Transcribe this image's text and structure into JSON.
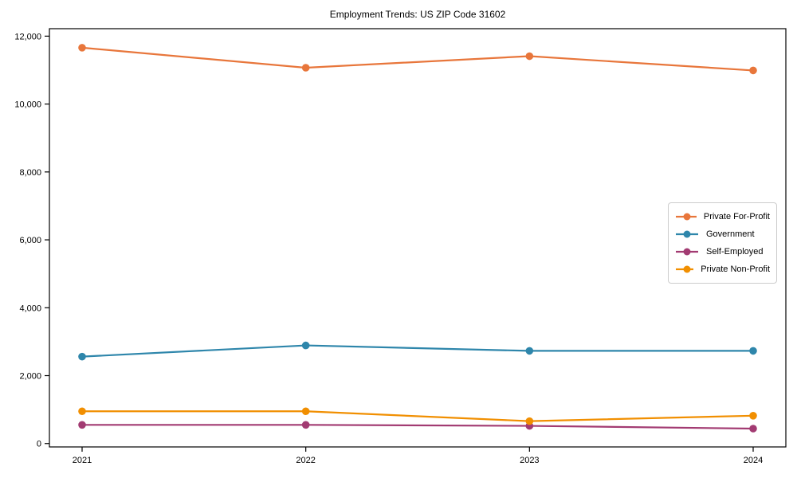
{
  "title": "Employment Trends: US ZIP Code 31602",
  "chart_data": {
    "type": "line",
    "title": "Employment Trends: US ZIP Code 31602",
    "x_labels": [
      "2021",
      "2022",
      "2023",
      "2024"
    ],
    "series": [
      {
        "name": "Private For-Profit",
        "color": "#E8763B",
        "values": [
          11660,
          11070,
          11410,
          10990
        ]
      },
      {
        "name": "Government",
        "color": "#2E86AB",
        "values": [
          2560,
          2890,
          2730,
          2730
        ]
      },
      {
        "name": "Self-Employed",
        "color": "#A23B72",
        "values": [
          550,
          550,
          520,
          440
        ]
      },
      {
        "name": "Private Non-Profit",
        "color": "#F18F01",
        "values": [
          950,
          950,
          660,
          820
        ]
      }
    ],
    "ylim": [
      -100,
      12220
    ],
    "yticks": [
      0,
      2000,
      4000,
      6000,
      8000,
      10000,
      12000
    ],
    "ytick_labels": [
      "0",
      "2,000",
      "4,000",
      "6,000",
      "8,000",
      "10,000",
      "12,000"
    ],
    "xlabel": "",
    "ylabel": "",
    "grid": false,
    "legend_position": "center-right",
    "marker": "circle",
    "axis_color": "#000000"
  }
}
